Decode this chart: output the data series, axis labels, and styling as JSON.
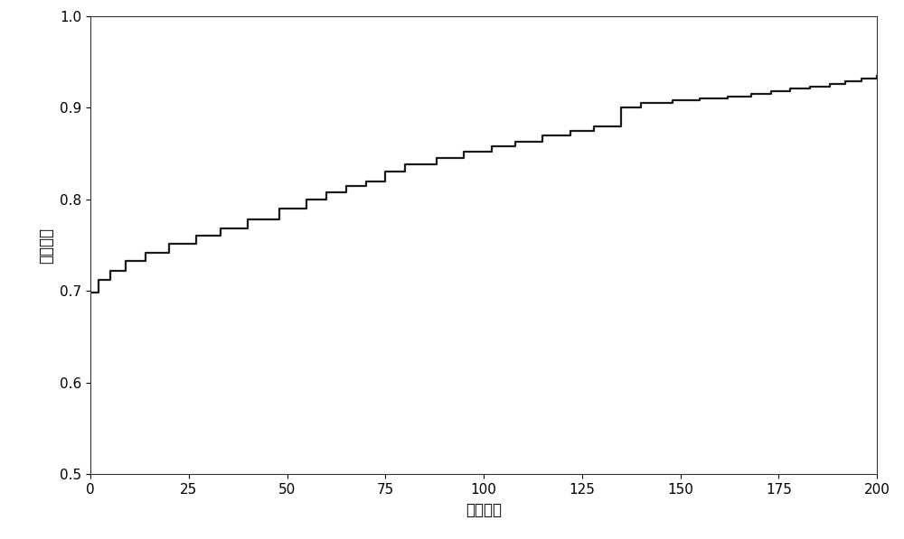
{
  "x": [
    0,
    2,
    5,
    9,
    14,
    20,
    27,
    33,
    40,
    48,
    55,
    60,
    65,
    70,
    75,
    80,
    88,
    95,
    102,
    108,
    115,
    122,
    128,
    135,
    140,
    148,
    155,
    162,
    168,
    173,
    178,
    183,
    188,
    192,
    196,
    200
  ],
  "y": [
    0.698,
    0.712,
    0.722,
    0.733,
    0.742,
    0.752,
    0.76,
    0.768,
    0.778,
    0.79,
    0.8,
    0.808,
    0.815,
    0.82,
    0.83,
    0.838,
    0.845,
    0.852,
    0.858,
    0.863,
    0.87,
    0.875,
    0.88,
    0.9,
    0.905,
    0.908,
    0.91,
    0.912,
    0.915,
    0.918,
    0.921,
    0.923,
    0.926,
    0.929,
    0.932,
    0.935
  ],
  "xlabel": "迭代次数",
  "ylabel": "适应度値",
  "xlim": [
    0,
    200
  ],
  "ylim": [
    0.5,
    1.0
  ],
  "xticks": [
    0,
    25,
    50,
    75,
    100,
    125,
    150,
    175,
    200
  ],
  "yticks": [
    0.5,
    0.6,
    0.7,
    0.8,
    0.9,
    1.0
  ],
  "line_color": "#1a1a1a",
  "line_width": 1.6,
  "background_color": "#ffffff",
  "font_size_label": 12,
  "font_size_tick": 11
}
